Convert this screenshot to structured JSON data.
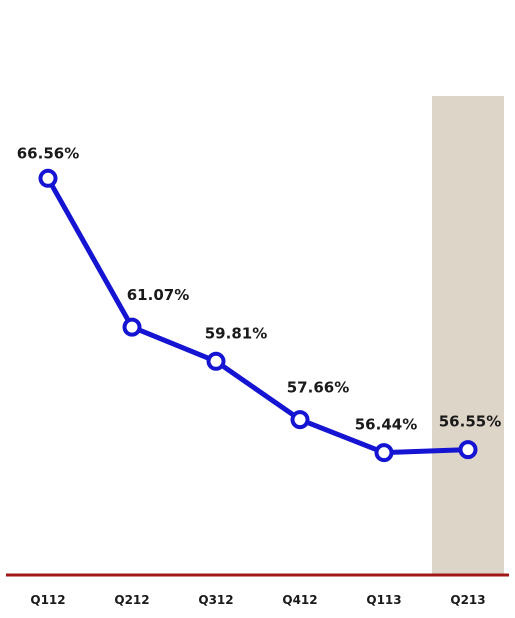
{
  "colors": {
    "line": "#1414d2",
    "marker_fill": "#ffffff",
    "highlight_band": "#ddd5c7",
    "baseline": "#a01818",
    "text": "#1a1a1a"
  },
  "chart_data": {
    "type": "line",
    "title": "",
    "xlabel": "",
    "ylabel": "",
    "categories": [
      "Q112",
      "Q212",
      "Q312",
      "Q412",
      "Q113",
      "Q213"
    ],
    "series": [
      {
        "values": [
          66.56,
          61.07,
          59.81,
          57.66,
          56.44,
          56.55
        ],
        "value_labels": [
          "66.56%",
          "61.07%",
          "59.81%",
          "57.66%",
          "56.44%",
          "56.55%"
        ]
      }
    ],
    "ylim": [
      52,
      70
    ],
    "grid": false,
    "legend": "none",
    "highlighted_category": "Q213"
  }
}
